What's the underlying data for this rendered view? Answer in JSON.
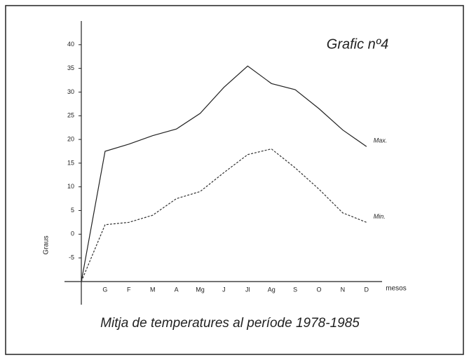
{
  "chart_data": {
    "type": "line",
    "title": "Grafic nº4",
    "caption": "Mitja de temperatures al període 1978-1985",
    "x_label": "mesos",
    "y_label": "Graus",
    "categories": [
      null,
      "G",
      "F",
      "M",
      "A",
      "Mg",
      "J",
      "Jl",
      "Ag",
      "S",
      "O",
      "N",
      "D"
    ],
    "series": [
      {
        "name": "Max.",
        "color": "#222222",
        "line_style": "solid",
        "values": [
          -10,
          17.5,
          19,
          20.8,
          22.2,
          25.5,
          31,
          35.5,
          31.8,
          30.5,
          26.5,
          22,
          18.5
        ]
      },
      {
        "name": "Min.",
        "color": "#333333",
        "line_style": "dashed",
        "values": [
          -10,
          2,
          2.5,
          4,
          7.5,
          9,
          13,
          16.8,
          18,
          14,
          9.5,
          4.5,
          2.5
        ]
      }
    ],
    "ylim": [
      -10,
      45
    ],
    "yticks": [
      -5,
      0,
      5,
      10,
      15,
      20,
      25,
      30,
      35,
      40
    ]
  }
}
